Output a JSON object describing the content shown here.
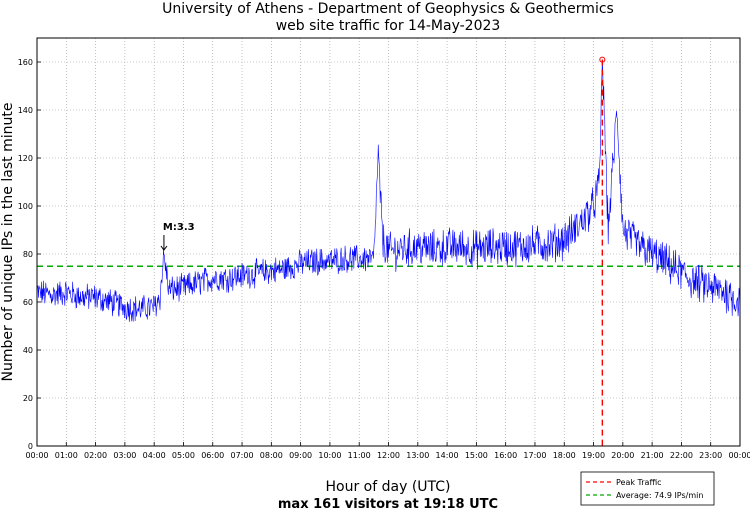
{
  "chart_data": {
    "type": "line",
    "title": "University of Athens - Department of Geophysics & Geothermics",
    "subtitle": "web site traffic for 14-May-2023",
    "xlabel": "Hour of day (UTC)",
    "ylabel": "Number of unique IPs in the last minute",
    "summary": "max 161 visitors at 19:18 UTC",
    "xlim": [
      "00:00",
      "24:00"
    ],
    "ylim": [
      0,
      170
    ],
    "x_ticks": [
      "00:00",
      "01:00",
      "02:00",
      "03:00",
      "04:00",
      "05:00",
      "06:00",
      "07:00",
      "08:00",
      "09:00",
      "10:00",
      "11:00",
      "12:00",
      "13:00",
      "14:00",
      "15:00",
      "16:00",
      "17:00",
      "18:00",
      "19:00",
      "20:00",
      "21:00",
      "22:00",
      "23:00",
      "00:00"
    ],
    "y_ticks": [
      0,
      20,
      40,
      60,
      80,
      100,
      120,
      140,
      160
    ],
    "grid": true,
    "legend_position": "bottom-right",
    "colors": {
      "traffic": "#0000ff",
      "peak": "#ff0000",
      "average": "#00aa00"
    },
    "series": [
      {
        "x_hours": [
          0,
          0.5,
          1,
          1.5,
          2,
          2.5,
          3,
          3.5,
          4,
          4.2,
          4.33,
          4.5,
          5,
          5.5,
          6,
          6.5,
          7,
          7.5,
          8,
          8.5,
          9,
          9.5,
          10,
          10.5,
          11,
          11.5,
          11.65,
          11.8,
          12,
          12.5,
          13,
          13.5,
          14,
          14.5,
          15,
          15.5,
          16,
          16.5,
          17,
          17.5,
          18,
          18.5,
          19,
          19.2,
          19.3,
          19.5,
          19.8,
          20,
          20.5,
          21,
          21.5,
          22,
          22.5,
          23,
          23.5,
          24
        ],
        "values": [
          64,
          63,
          64,
          62,
          62,
          60,
          58,
          57,
          58,
          62,
          80,
          65,
          66,
          68,
          70,
          70,
          71,
          72,
          73,
          74,
          76,
          77,
          77,
          78,
          78,
          78,
          122,
          86,
          81,
          82,
          83,
          82,
          83,
          83,
          82,
          83,
          83,
          83,
          84,
          84,
          86,
          92,
          100,
          110,
          161,
          90,
          140,
          90,
          84,
          80,
          76,
          72,
          68,
          66,
          64,
          60
        ]
      }
    ],
    "peak": {
      "time": "19:18",
      "value": 161,
      "label": "Peak Traffic"
    },
    "average": {
      "value": 74.9,
      "label": "Average: 74.9 IPs/min"
    },
    "annotations": [
      {
        "text": "M:3.3",
        "time": "04:20",
        "value": 80
      }
    ]
  }
}
